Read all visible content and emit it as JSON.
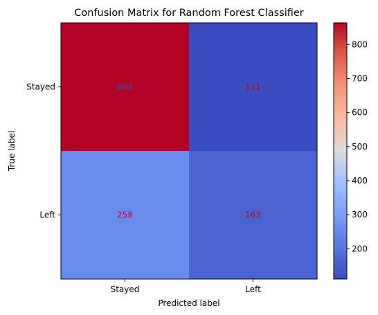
{
  "chart_data": {
    "type": "heatmap",
    "title": "Confusion Matrix for Random Forest Classifier",
    "xlabel": "Predicted label",
    "ylabel": "True label",
    "x_categories": [
      "Stayed",
      "Left"
    ],
    "y_categories": [
      "Stayed",
      "Left"
    ],
    "values": [
      [
        864,
        111
      ],
      [
        258,
        163
      ]
    ],
    "colormap": "coolwarm",
    "color_range": [
      111,
      864
    ],
    "colorbar_ticks": [
      200,
      300,
      400,
      500,
      600,
      700,
      800
    ],
    "cell_text_colors": [
      [
        "#3b4cc0",
        "#b40426"
      ],
      [
        "#b40426",
        "#b40426"
      ]
    ],
    "grid": false
  }
}
